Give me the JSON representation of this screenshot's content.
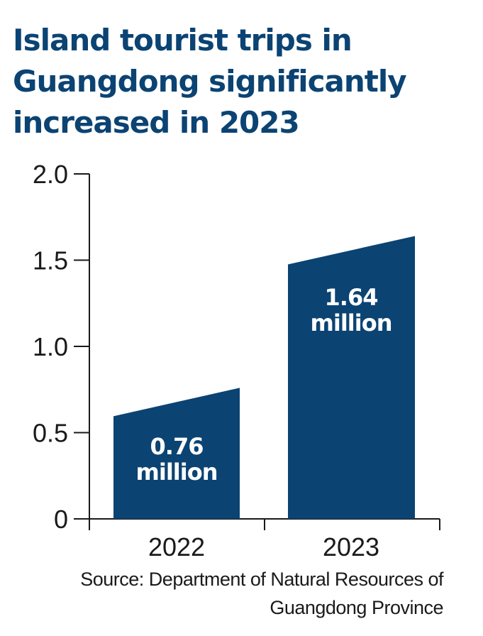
{
  "title_lines": [
    "Island tourist trips in",
    "Guangdong significantly",
    "increased in 2023"
  ],
  "source_lines": [
    "Source: Department of Natural Resources of",
    "Guangdong Province"
  ],
  "chart_data": {
    "type": "bar",
    "title": "Island tourist trips in Guangdong significantly increased in 2023",
    "categories": [
      "2022",
      "2023"
    ],
    "values": [
      0.76,
      1.64
    ],
    "value_labels": [
      [
        "0.76",
        "million"
      ],
      [
        "1.64",
        "million"
      ]
    ],
    "yticks": [
      "0",
      "0.5",
      "1.0",
      "1.5",
      "2.0"
    ],
    "ytick_values": [
      0,
      0.5,
      1.0,
      1.5,
      2.0
    ],
    "ylim": [
      0,
      2.0
    ],
    "xlabel": "",
    "ylabel": "",
    "grid": false,
    "colors": {
      "bar": "#0b4373",
      "title": "#0b4373",
      "axis": "#1a1a1a",
      "bar_label": "#ffffff"
    }
  }
}
